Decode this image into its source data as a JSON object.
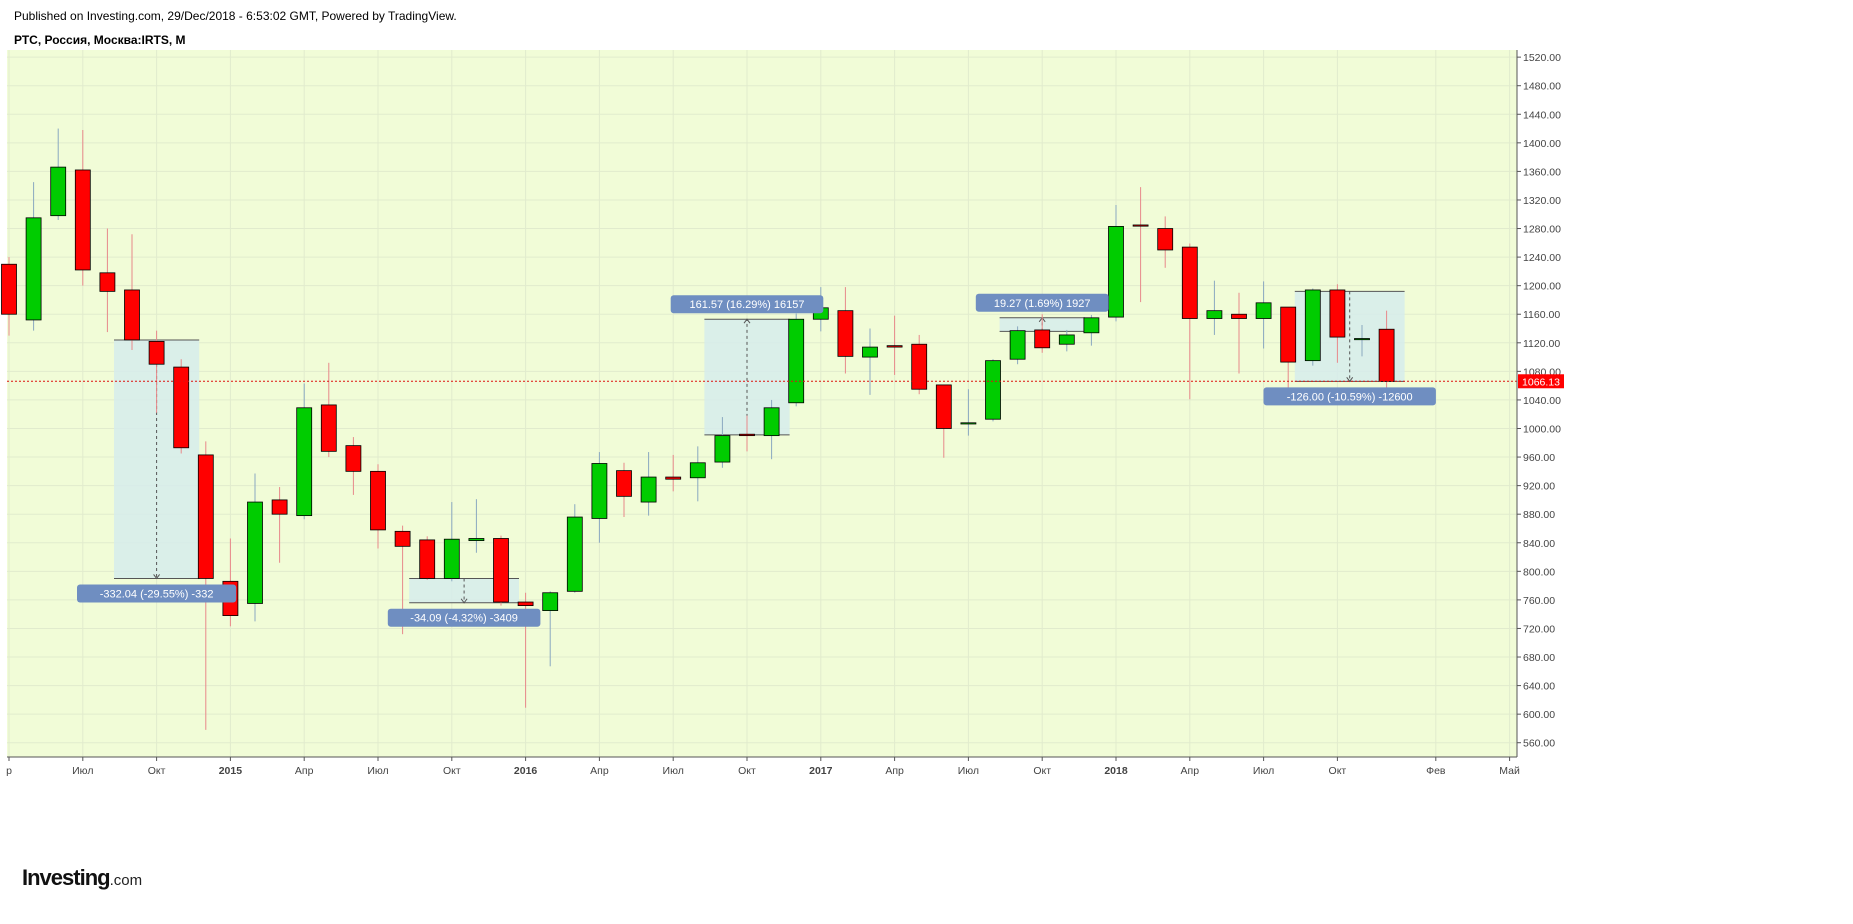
{
  "header": {
    "published": "Published on Investing.com, 29/Dec/2018 - 6:53:02 GMT, Powered by TradingView.",
    "symbol": "РТС, Россия, Москва:IRTS, M"
  },
  "logo": {
    "brand": "Investing",
    "domain": ".com"
  },
  "colors": {
    "plot_bg": "#f1fcd7",
    "up": "#00cc00",
    "down": "#ff0000",
    "measure_fill": "#d6ecec",
    "measure_label_bg": "#6f8ec1",
    "price_line": "#dd1111",
    "last_price_bg": "#ff0000"
  },
  "chart_data": {
    "type": "candlestick",
    "interval": "M",
    "symbol": "IRTS",
    "ylim": [
      540,
      1530
    ],
    "yticks": [
      560,
      600,
      640,
      680,
      720,
      760,
      800,
      840,
      880,
      920,
      960,
      1000,
      1040,
      1080,
      1120,
      1160,
      1200,
      1240,
      1280,
      1320,
      1360,
      1400,
      1440,
      1480,
      1520
    ],
    "ytick_labels": [
      "560.00",
      "600.00",
      "640.00",
      "680.00",
      "720.00",
      "760.00",
      "800.00",
      "840.00",
      "880.00",
      "920.00",
      "960.00",
      "1000.00",
      "1040.00",
      "1080.00",
      "1120.00",
      "1160.00",
      "1200.00",
      "1240.00",
      "1280.00",
      "1320.00",
      "1360.00",
      "1400.00",
      "1440.00",
      "1480.00",
      "1520.00"
    ],
    "last_price": 1066.13,
    "last_price_label": "1066.13",
    "xaxis_labels": [
      {
        "label": "р",
        "month": "2014-04"
      },
      {
        "label": "Июл",
        "month": "2014-07"
      },
      {
        "label": "Окт",
        "month": "2014-10"
      },
      {
        "label": "2015",
        "month": "2015-01",
        "bold": true
      },
      {
        "label": "Апр",
        "month": "2015-04"
      },
      {
        "label": "Июл",
        "month": "2015-07"
      },
      {
        "label": "Окт",
        "month": "2015-10"
      },
      {
        "label": "2016",
        "month": "2016-01",
        "bold": true
      },
      {
        "label": "Апр",
        "month": "2016-04"
      },
      {
        "label": "Июл",
        "month": "2016-07"
      },
      {
        "label": "Окт",
        "month": "2016-10"
      },
      {
        "label": "2017",
        "month": "2017-01",
        "bold": true
      },
      {
        "label": "Апр",
        "month": "2017-04"
      },
      {
        "label": "Июл",
        "month": "2017-07"
      },
      {
        "label": "Окт",
        "month": "2017-10"
      },
      {
        "label": "2018",
        "month": "2018-01",
        "bold": true
      },
      {
        "label": "Апр",
        "month": "2018-04"
      },
      {
        "label": "Июл",
        "month": "2018-07"
      },
      {
        "label": "Окт",
        "month": "2018-10"
      },
      {
        "label": "Фев",
        "month": "2019-02"
      },
      {
        "label": "Май",
        "month": "2019-05"
      }
    ],
    "candles": [
      {
        "month": "2014-04",
        "open": 1230,
        "high": 1240,
        "low": 1130,
        "close": 1160
      },
      {
        "month": "2014-05",
        "open": 1152,
        "high": 1345,
        "low": 1137,
        "close": 1295
      },
      {
        "month": "2014-06",
        "open": 1298,
        "high": 1420,
        "low": 1292,
        "close": 1366
      },
      {
        "month": "2014-07",
        "open": 1362,
        "high": 1418,
        "low": 1200,
        "close": 1222
      },
      {
        "month": "2014-08",
        "open": 1218,
        "high": 1280,
        "low": 1135,
        "close": 1192
      },
      {
        "month": "2014-09",
        "open": 1194,
        "high": 1272,
        "low": 1110,
        "close": 1124
      },
      {
        "month": "2014-10",
        "open": 1122,
        "high": 1137,
        "low": 1022,
        "close": 1090
      },
      {
        "month": "2014-11",
        "open": 1086,
        "high": 1097,
        "low": 965,
        "close": 973
      },
      {
        "month": "2014-12",
        "open": 963,
        "high": 982,
        "low": 578,
        "close": 790
      },
      {
        "month": "2015-01",
        "open": 786,
        "high": 846,
        "low": 723,
        "close": 738
      },
      {
        "month": "2015-02",
        "open": 755,
        "high": 937,
        "low": 730,
        "close": 897
      },
      {
        "month": "2015-03",
        "open": 900,
        "high": 918,
        "low": 812,
        "close": 880
      },
      {
        "month": "2015-04",
        "open": 878,
        "high": 1063,
        "low": 873,
        "close": 1029
      },
      {
        "month": "2015-05",
        "open": 1033,
        "high": 1092,
        "low": 960,
        "close": 968
      },
      {
        "month": "2015-06",
        "open": 976,
        "high": 988,
        "low": 907,
        "close": 940
      },
      {
        "month": "2015-07",
        "open": 940,
        "high": 950,
        "low": 832,
        "close": 858
      },
      {
        "month": "2015-08",
        "open": 856,
        "high": 864,
        "low": 712,
        "close": 835
      },
      {
        "month": "2015-09",
        "open": 844,
        "high": 849,
        "low": 788,
        "close": 790
      },
      {
        "month": "2015-10",
        "open": 790,
        "high": 897,
        "low": 786,
        "close": 845
      },
      {
        "month": "2015-11",
        "open": 843,
        "high": 901,
        "low": 826,
        "close": 846
      },
      {
        "month": "2015-12",
        "open": 846,
        "high": 850,
        "low": 752,
        "close": 757
      },
      {
        "month": "2016-01",
        "open": 757,
        "high": 770,
        "low": 609,
        "close": 752
      },
      {
        "month": "2016-02",
        "open": 745,
        "high": 772,
        "low": 667,
        "close": 770
      },
      {
        "month": "2016-03",
        "open": 772,
        "high": 894,
        "low": 770,
        "close": 876
      },
      {
        "month": "2016-04",
        "open": 874,
        "high": 967,
        "low": 840,
        "close": 951
      },
      {
        "month": "2016-05",
        "open": 941,
        "high": 952,
        "low": 876,
        "close": 905
      },
      {
        "month": "2016-06",
        "open": 897,
        "high": 967,
        "low": 878,
        "close": 932
      },
      {
        "month": "2016-07",
        "open": 932,
        "high": 963,
        "low": 912,
        "close": 929
      },
      {
        "month": "2016-08",
        "open": 931,
        "high": 975,
        "low": 898,
        "close": 952
      },
      {
        "month": "2016-09",
        "open": 953,
        "high": 1016,
        "low": 945,
        "close": 990
      },
      {
        "month": "2016-10",
        "open": 992,
        "high": 1018,
        "low": 968,
        "close": 990
      },
      {
        "month": "2016-11",
        "open": 990,
        "high": 1040,
        "low": 957,
        "close": 1029
      },
      {
        "month": "2016-12",
        "open": 1036,
        "high": 1161,
        "low": 1031,
        "close": 1153
      },
      {
        "month": "2017-01",
        "open": 1153,
        "high": 1198,
        "low": 1136,
        "close": 1169
      },
      {
        "month": "2017-02",
        "open": 1165,
        "high": 1198,
        "low": 1077,
        "close": 1101
      },
      {
        "month": "2017-03",
        "open": 1100,
        "high": 1140,
        "low": 1047,
        "close": 1114
      },
      {
        "month": "2017-04",
        "open": 1116,
        "high": 1158,
        "low": 1075,
        "close": 1114
      },
      {
        "month": "2017-05",
        "open": 1118,
        "high": 1131,
        "low": 1048,
        "close": 1055
      },
      {
        "month": "2017-06",
        "open": 1061,
        "high": 1061,
        "low": 959,
        "close": 1000
      },
      {
        "month": "2017-07",
        "open": 1008,
        "high": 1055,
        "low": 990,
        "close": 1008
      },
      {
        "month": "2017-08",
        "open": 1013,
        "high": 1097,
        "low": 1010,
        "close": 1095
      },
      {
        "month": "2017-09",
        "open": 1097,
        "high": 1143,
        "low": 1090,
        "close": 1137
      },
      {
        "month": "2017-10",
        "open": 1138,
        "high": 1160,
        "low": 1106,
        "close": 1113
      },
      {
        "month": "2017-11",
        "open": 1118,
        "high": 1138,
        "low": 1108,
        "close": 1131
      },
      {
        "month": "2017-12",
        "open": 1134,
        "high": 1159,
        "low": 1116,
        "close": 1155
      },
      {
        "month": "2018-01",
        "open": 1156,
        "high": 1313,
        "low": 1150,
        "close": 1283
      },
      {
        "month": "2018-02",
        "open": 1285,
        "high": 1338,
        "low": 1177,
        "close": 1284
      },
      {
        "month": "2018-03",
        "open": 1280,
        "high": 1297,
        "low": 1225,
        "close": 1250
      },
      {
        "month": "2018-04",
        "open": 1254,
        "high": 1259,
        "low": 1041,
        "close": 1154
      },
      {
        "month": "2018-05",
        "open": 1154,
        "high": 1207,
        "low": 1131,
        "close": 1165
      },
      {
        "month": "2018-06",
        "open": 1160,
        "high": 1190,
        "low": 1077,
        "close": 1154
      },
      {
        "month": "2018-07",
        "open": 1154,
        "high": 1206,
        "low": 1112,
        "close": 1176
      },
      {
        "month": "2018-08",
        "open": 1170,
        "high": 1170,
        "low": 1050,
        "close": 1093
      },
      {
        "month": "2018-09",
        "open": 1095,
        "high": 1196,
        "low": 1088,
        "close": 1194
      },
      {
        "month": "2018-10",
        "open": 1194,
        "high": 1202,
        "low": 1092,
        "close": 1128
      },
      {
        "month": "2018-11",
        "open": 1126,
        "high": 1145,
        "low": 1101,
        "close": 1126
      },
      {
        "month": "2018-12",
        "open": 1139,
        "high": 1165,
        "low": 1055,
        "close": 1066
      }
    ],
    "measurements": [
      {
        "label": "-332.04 (-29.55%) -332",
        "from_month": "2014-09",
        "to_month": "2014-11",
        "from_value": 1124,
        "to_value": 790
      },
      {
        "label": "-34.09 (-4.32%) -3409",
        "from_month": "2015-09",
        "to_month": "2015-12",
        "from_value": 790,
        "to_value": 756
      },
      {
        "label": "161.57 (16.29%) 16157",
        "from_month": "2016-09",
        "to_month": "2016-11",
        "from_value": 991,
        "to_value": 1153
      },
      {
        "label": "19.27 (1.69%) 1927",
        "from_month": "2017-09",
        "to_month": "2017-11",
        "from_value": 1136,
        "to_value": 1155
      },
      {
        "label": "-126.00 (-10.59%) -12600",
        "from_month": "2018-09",
        "to_month": "2018-12",
        "from_value": 1192,
        "to_value": 1066
      }
    ]
  }
}
